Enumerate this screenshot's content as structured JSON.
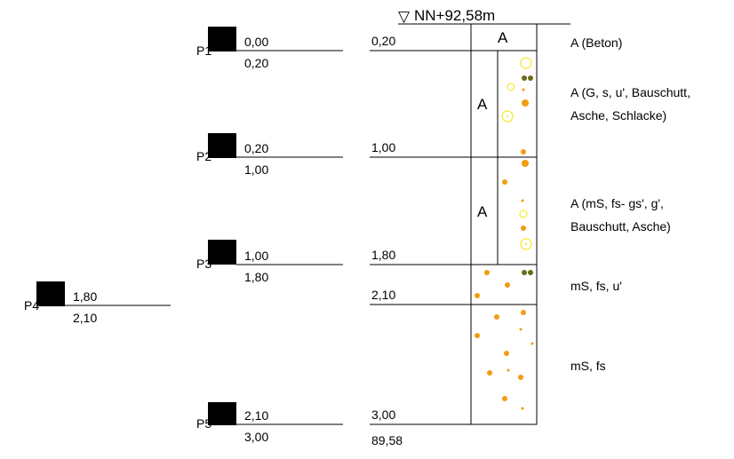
{
  "elevation": {
    "symbol": "▽",
    "label": "NN+92,58m"
  },
  "samples": [
    {
      "id": "P1",
      "top": "0,00",
      "bottom": "0,20"
    },
    {
      "id": "P2",
      "top": "0,20",
      "bottom": "1,00"
    },
    {
      "id": "P3",
      "top": "1,00",
      "bottom": "1,80"
    },
    {
      "id": "P4",
      "top": "1,80",
      "bottom": "2,10"
    },
    {
      "id": "P5",
      "top": "2,10",
      "bottom": "3,00"
    }
  ],
  "depth_marks": [
    "0,20",
    "1,00",
    "1,80",
    "2,10",
    "3,00"
  ],
  "final_elevation": "89,58",
  "layers": [
    {
      "code": "A",
      "description_lines": [
        "A (Beton)"
      ]
    },
    {
      "code": "A",
      "description_lines": [
        "A (G, s, u', Bauschutt,",
        "Asche, Schlacke)"
      ]
    },
    {
      "code": "A",
      "description_lines": [
        "A (mS, fs- gs', g',",
        "Bauschutt, Asche)"
      ]
    },
    {
      "code": "",
      "description_lines": [
        "mS, fs, u'"
      ]
    },
    {
      "code": "",
      "description_lines": [
        "mS, fs"
      ]
    }
  ],
  "colors": {
    "sand_dot": "#f39c12",
    "ring": "#f2e400",
    "clay": "#6b6b16",
    "line": "#000000"
  }
}
